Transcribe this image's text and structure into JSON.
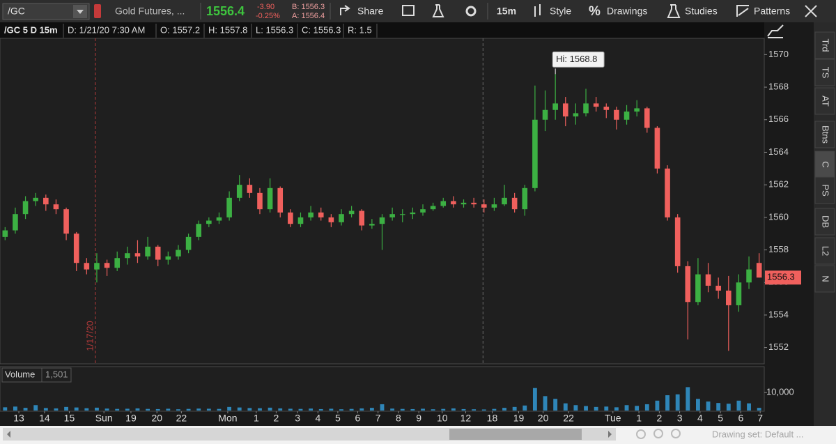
{
  "toolbar": {
    "symbol": "/GC",
    "description": "Gold Futures, ...",
    "last": "1556.4",
    "change": "-3.90",
    "change_pct": "-0.25%",
    "bid": "B: 1556.3",
    "ask": "A: 1556.4",
    "share": "Share",
    "timeframe": "15m",
    "style": "Style",
    "drawings_icon": "%",
    "drawings": "Drawings",
    "studies": "Studies",
    "patterns": "Patterns"
  },
  "info_bar": {
    "title": "/GC 5 D 15m",
    "date": "D: 1/21/20 7:30 AM",
    "open": "O: 1557.2",
    "high": "H: 1557.8",
    "low": "L: 1556.3",
    "close": "C: 1556.3",
    "range": "R: 1.5"
  },
  "sidebar": [
    "Trd",
    "TS",
    "AT",
    "Btns",
    "C",
    "PS",
    "DB",
    "L2",
    "N"
  ],
  "footer": {
    "drawing_set": "Drawing set: Default ..."
  },
  "volume_pane": {
    "title": "Volume",
    "readout": "1,501"
  },
  "chart_data": {
    "type": "candlestick",
    "up_color": "#3cb043",
    "down_color": "#f0605d",
    "xlim": [
      -0.5,
      74.5
    ],
    "ylim": [
      1551,
      1571
    ],
    "yticks": [
      1552,
      1554,
      1556,
      1558,
      1560,
      1562,
      1564,
      1566,
      1568,
      1570
    ],
    "xticks": [
      {
        "value": 1.35,
        "label": "13"
      },
      {
        "value": 3.87,
        "label": "14"
      },
      {
        "value": 6.3,
        "label": "15"
      },
      {
        "value": 9.7,
        "label": "Sun"
      },
      {
        "value": 12.35,
        "label": "19"
      },
      {
        "value": 14.9,
        "label": "20"
      },
      {
        "value": 17.3,
        "label": "22"
      },
      {
        "value": 21.85,
        "label": "Mon"
      },
      {
        "value": 24.65,
        "label": "1"
      },
      {
        "value": 26.6,
        "label": "2"
      },
      {
        "value": 28.7,
        "label": "3"
      },
      {
        "value": 30.7,
        "label": "4"
      },
      {
        "value": 32.65,
        "label": "5"
      },
      {
        "value": 34.6,
        "label": "6"
      },
      {
        "value": 36.6,
        "label": "7"
      },
      {
        "value": 38.6,
        "label": "8"
      },
      {
        "value": 40.6,
        "label": "9"
      },
      {
        "value": 42.9,
        "label": "10"
      },
      {
        "value": 45.2,
        "label": "12"
      },
      {
        "value": 47.8,
        "label": "18"
      },
      {
        "value": 50.4,
        "label": "19"
      },
      {
        "value": 52.8,
        "label": "20"
      },
      {
        "value": 55.3,
        "label": "22"
      },
      {
        "value": 59.65,
        "label": "Tue"
      },
      {
        "value": 62.2,
        "label": "1"
      },
      {
        "value": 64.2,
        "label": "2"
      },
      {
        "value": 66.2,
        "label": "3"
      },
      {
        "value": 68.2,
        "label": "4"
      },
      {
        "value": 70.2,
        "label": "5"
      },
      {
        "value": 72.2,
        "label": "6"
      },
      {
        "value": 74.1,
        "label": "7"
      }
    ],
    "ohlc": [
      [
        1558.8,
        1559.4,
        1558.6,
        1559.2
      ],
      [
        1559.2,
        1560.6,
        1559.0,
        1560.2
      ],
      [
        1560.2,
        1561.3,
        1559.9,
        1561.0
      ],
      [
        1561.0,
        1561.5,
        1560.7,
        1561.2
      ],
      [
        1561.2,
        1561.4,
        1560.4,
        1560.8
      ],
      [
        1560.8,
        1561.1,
        1560.2,
        1560.5
      ],
      [
        1560.5,
        1560.6,
        1558.6,
        1559.0
      ],
      [
        1559.0,
        1559.1,
        1556.7,
        1557.2
      ],
      [
        1557.2,
        1557.5,
        1556.5,
        1556.8
      ],
      [
        1556.8,
        1557.8,
        1556.0,
        1557.2
      ],
      [
        1557.2,
        1557.4,
        1556.4,
        1556.9
      ],
      [
        1556.9,
        1557.9,
        1556.7,
        1557.5
      ],
      [
        1557.5,
        1558.2,
        1557.1,
        1557.8
      ],
      [
        1557.8,
        1558.6,
        1557.2,
        1557.6
      ],
      [
        1557.6,
        1558.8,
        1557.4,
        1558.2
      ],
      [
        1558.2,
        1558.3,
        1557.0,
        1557.4
      ],
      [
        1557.4,
        1557.9,
        1557.1,
        1557.6
      ],
      [
        1557.6,
        1558.3,
        1557.4,
        1558.0
      ],
      [
        1558.0,
        1559.0,
        1557.8,
        1558.8
      ],
      [
        1558.8,
        1559.8,
        1558.6,
        1559.6
      ],
      [
        1559.6,
        1560.0,
        1559.4,
        1559.8
      ],
      [
        1559.8,
        1560.3,
        1559.6,
        1560.0
      ],
      [
        1560.0,
        1561.6,
        1559.8,
        1561.2
      ],
      [
        1561.2,
        1562.6,
        1561.0,
        1562.0
      ],
      [
        1562.0,
        1562.4,
        1561.2,
        1561.5
      ],
      [
        1561.5,
        1561.8,
        1560.2,
        1560.5
      ],
      [
        1560.5,
        1562.4,
        1560.3,
        1561.8
      ],
      [
        1561.8,
        1561.9,
        1560.0,
        1560.3
      ],
      [
        1560.3,
        1560.5,
        1559.4,
        1559.6
      ],
      [
        1559.6,
        1560.3,
        1559.4,
        1560.0
      ],
      [
        1560.0,
        1560.7,
        1559.8,
        1560.3
      ],
      [
        1560.3,
        1560.6,
        1559.8,
        1560.0
      ],
      [
        1560.0,
        1560.2,
        1559.4,
        1559.7
      ],
      [
        1559.7,
        1560.5,
        1559.5,
        1560.2
      ],
      [
        1560.2,
        1560.7,
        1560.0,
        1560.4
      ],
      [
        1560.4,
        1560.5,
        1559.2,
        1559.5
      ],
      [
        1559.5,
        1559.9,
        1559.3,
        1559.6
      ],
      [
        1559.6,
        1560.2,
        1558.0,
        1560.0
      ],
      [
        1560.0,
        1560.6,
        1559.8,
        1560.2
      ],
      [
        1560.2,
        1560.5,
        1559.7,
        1560.2
      ],
      [
        1560.2,
        1560.6,
        1559.9,
        1560.3
      ],
      [
        1560.3,
        1560.8,
        1560.1,
        1560.5
      ],
      [
        1560.5,
        1560.9,
        1560.4,
        1560.7
      ],
      [
        1560.7,
        1561.2,
        1560.6,
        1561.0
      ],
      [
        1561.0,
        1561.3,
        1560.6,
        1560.8
      ],
      [
        1560.8,
        1561.1,
        1560.6,
        1560.9
      ],
      [
        1560.9,
        1561.2,
        1560.6,
        1560.8
      ],
      [
        1560.8,
        1561.1,
        1560.3,
        1560.6
      ],
      [
        1560.6,
        1561.2,
        1560.4,
        1560.8
      ],
      [
        1560.8,
        1562.0,
        1560.7,
        1561.2
      ],
      [
        1561.2,
        1561.5,
        1560.3,
        1560.5
      ],
      [
        1560.5,
        1562.0,
        1560.1,
        1561.8
      ],
      [
        1561.8,
        1568.1,
        1561.6,
        1566.0
      ],
      [
        1566.0,
        1567.8,
        1565.3,
        1566.6
      ],
      [
        1566.6,
        1568.8,
        1566.0,
        1567.0
      ],
      [
        1567.0,
        1567.4,
        1565.6,
        1566.2
      ],
      [
        1566.2,
        1567.0,
        1565.7,
        1566.4
      ],
      [
        1566.4,
        1567.9,
        1566.2,
        1567.0
      ],
      [
        1567.0,
        1567.4,
        1566.5,
        1566.8
      ],
      [
        1566.8,
        1567.0,
        1566.1,
        1566.6
      ],
      [
        1566.6,
        1566.8,
        1565.4,
        1566.0
      ],
      [
        1566.0,
        1566.9,
        1565.7,
        1566.5
      ],
      [
        1566.5,
        1567.2,
        1566.2,
        1566.7
      ],
      [
        1566.7,
        1566.8,
        1565.2,
        1565.5
      ],
      [
        1565.5,
        1565.6,
        1562.7,
        1563.0
      ],
      [
        1563.0,
        1563.2,
        1559.8,
        1560.0
      ],
      [
        1560.0,
        1560.2,
        1556.6,
        1557.0
      ],
      [
        1557.0,
        1557.3,
        1552.5,
        1554.8
      ],
      [
        1554.8,
        1557.5,
        1554.6,
        1556.5
      ],
      [
        1556.5,
        1557.2,
        1555.4,
        1555.8
      ],
      [
        1555.8,
        1556.3,
        1555.0,
        1555.5
      ],
      [
        1555.5,
        1556.4,
        1551.8,
        1554.6
      ],
      [
        1554.6,
        1556.5,
        1554.2,
        1556.0
      ],
      [
        1556.0,
        1557.6,
        1555.6,
        1556.8
      ],
      [
        1557.2,
        1557.8,
        1556.3,
        1556.3
      ]
    ],
    "markers": [
      {
        "x": 8.86,
        "label": "1/17/20",
        "color": "#b23a3a"
      },
      {
        "x": 46.9,
        "color": "#6a6a6a"
      }
    ],
    "annotation": {
      "x": 54,
      "value": 1568.8,
      "label": "Hi: 1568.8"
    },
    "volume": {
      "color": "#2f86b8",
      "ylim": [
        0,
        24000
      ],
      "yticks": [
        {
          "value": 10000,
          "label": "10,000"
        }
      ],
      "values": [
        1800,
        2200,
        1500,
        3000,
        1400,
        1200,
        2000,
        1700,
        1300,
        1600,
        1100,
        900,
        1000,
        1200,
        900,
        800,
        1000,
        700,
        900,
        1100,
        1000,
        900,
        2000,
        1700,
        1400,
        1300,
        1600,
        1200,
        1000,
        900,
        1100,
        800,
        1000,
        700,
        900,
        1200,
        1500,
        3500,
        1100,
        900,
        800,
        1000,
        700,
        900,
        1200,
        800,
        700,
        600,
        900,
        1500,
        2000,
        2800,
        12500,
        8000,
        6500,
        4000,
        3000,
        2500,
        2000,
        2200,
        1800,
        3000,
        2600,
        3500,
        5500,
        8500,
        9000,
        13000,
        6500,
        5000,
        4200,
        3800,
        5500,
        4000,
        1500
      ]
    }
  }
}
